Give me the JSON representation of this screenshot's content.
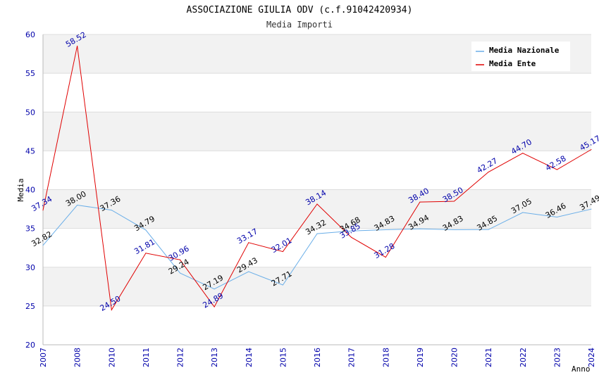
{
  "chart_data": {
    "type": "line",
    "title": "ASSOCIAZIONE GIULIA ODV (c.f.91042420934)",
    "subtitle": "Media Importi",
    "xlabel": "Anno",
    "ylabel": "Media",
    "ylim": [
      20,
      60
    ],
    "yticks": [
      20,
      25,
      30,
      35,
      40,
      45,
      50,
      55,
      60
    ],
    "categories": [
      "2007",
      "2008",
      "2010",
      "2011",
      "2012",
      "2013",
      "2014",
      "2015",
      "2016",
      "2017",
      "2018",
      "2019",
      "2020",
      "2021",
      "2022",
      "2023",
      "2024"
    ],
    "series": [
      {
        "name": "Media Nazionale",
        "color": "#6aaee8",
        "values": [
          32.82,
          38.0,
          37.36,
          34.79,
          29.24,
          27.19,
          29.43,
          27.71,
          34.32,
          34.68,
          34.83,
          34.94,
          34.83,
          34.85,
          37.05,
          36.46,
          37.49
        ],
        "labels": [
          "32.82",
          "38.00",
          "37.36",
          "34.79",
          "29.24",
          "27.19",
          "29.43",
          "27.71",
          "34.32",
          "34.68",
          "34.83",
          "34.94",
          "34.83",
          "34.85",
          "37.05",
          "36.46",
          "37.49"
        ]
      },
      {
        "name": "Media Ente",
        "color": "#e00000",
        "values": [
          37.34,
          58.52,
          24.5,
          31.81,
          30.96,
          24.89,
          33.17,
          32.01,
          38.14,
          33.85,
          31.28,
          38.4,
          38.5,
          42.27,
          44.7,
          42.58,
          45.17
        ],
        "labels": [
          "37.34",
          "58.52",
          "24.50",
          "31.81",
          "30.96",
          "24.89",
          "33.17",
          "32.01",
          "38.14",
          "33.85",
          "31.28",
          "38.40",
          "38.50",
          "42.27",
          "44.70",
          "42.58",
          "45.17"
        ]
      }
    ],
    "legend_position": "top-right",
    "grid": true
  }
}
